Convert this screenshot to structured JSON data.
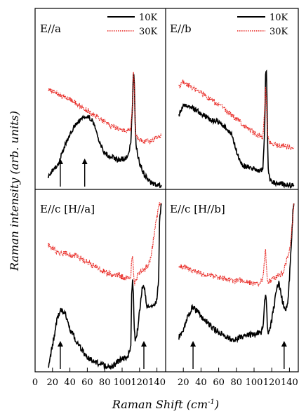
{
  "chart_data": {
    "type": "line",
    "xlabel": "Raman Shift (cm-1)",
    "xlabel_main": "Raman Shift (cm",
    "xlabel_exp": "-1",
    "xlabel_close": ")",
    "ylabel": "Raman intensity (arb. units)",
    "xlim": [
      0,
      150
    ],
    "x_ticks": [
      0,
      20,
      40,
      60,
      80,
      100,
      120,
      140
    ],
    "x_tick_labels": [
      "0",
      "20",
      "40",
      "60",
      "80",
      "100",
      "120",
      "140"
    ],
    "y_ticks_shown": false,
    "legend": [
      {
        "name": "10K",
        "color": "#000000",
        "style": "solid"
      },
      {
        "name": "30K",
        "color": "#e8231e",
        "style": "dotted"
      }
    ],
    "legend_position": "top-right",
    "panels": [
      {
        "label": "E//a",
        "position": "top-left",
        "arrows_at_x": [
          29,
          57
        ],
        "series": [
          {
            "name": "10K",
            "color": "#000000",
            "x": [
              15,
              20,
              25,
              30,
              35,
              40,
              45,
              50,
              55,
              60,
              65,
              70,
              75,
              80,
              85,
              90,
              95,
              100,
              103,
              105,
              108,
              110,
              112,
              113,
              114,
              115,
              116,
              118,
              120,
              125,
              130,
              135,
              140,
              145
            ],
            "y": [
              0.07,
              0.12,
              0.15,
              0.22,
              0.3,
              0.36,
              0.42,
              0.46,
              0.48,
              0.5,
              0.47,
              0.4,
              0.3,
              0.24,
              0.22,
              0.21,
              0.19,
              0.2,
              0.2,
              0.21,
              0.24,
              0.32,
              0.6,
              0.8,
              0.72,
              0.45,
              0.3,
              0.22,
              0.17,
              0.1,
              0.05,
              0.03,
              0.02,
              0.02
            ]
          },
          {
            "name": "30K",
            "color": "#e8231e",
            "x": [
              15,
              20,
              25,
              30,
              35,
              40,
              45,
              50,
              55,
              60,
              65,
              70,
              75,
              80,
              85,
              90,
              95,
              100,
              105,
              108,
              110,
              112,
              113,
              114,
              115,
              116,
              118,
              120,
              125,
              130,
              135,
              140,
              145
            ],
            "y": [
              0.67,
              0.66,
              0.65,
              0.63,
              0.62,
              0.61,
              0.59,
              0.57,
              0.55,
              0.53,
              0.51,
              0.49,
              0.47,
              0.45,
              0.43,
              0.42,
              0.41,
              0.4,
              0.39,
              0.39,
              0.4,
              0.58,
              0.8,
              0.7,
              0.42,
              0.36,
              0.34,
              0.33,
              0.32,
              0.32,
              0.33,
              0.35,
              0.36
            ]
          }
        ]
      },
      {
        "label": "E//b",
        "position": "top-right",
        "arrows_at_x": [],
        "series": [
          {
            "name": "10K",
            "color": "#000000",
            "x": [
              15,
              20,
              25,
              30,
              35,
              40,
              45,
              50,
              55,
              60,
              65,
              70,
              75,
              80,
              85,
              90,
              95,
              100,
              105,
              108,
              110,
              112,
              113,
              114,
              115,
              116,
              118,
              120,
              125,
              130,
              135,
              140,
              145
            ],
            "y": [
              0.5,
              0.56,
              0.57,
              0.55,
              0.53,
              0.51,
              0.49,
              0.47,
              0.46,
              0.45,
              0.43,
              0.4,
              0.37,
              0.25,
              0.17,
              0.15,
              0.14,
              0.13,
              0.12,
              0.12,
              0.13,
              0.4,
              0.78,
              0.8,
              0.45,
              0.12,
              0.05,
              0.04,
              0.03,
              0.03,
              0.02,
              0.02,
              0.02
            ]
          },
          {
            "name": "30K",
            "color": "#e8231e",
            "x": [
              15,
              20,
              25,
              30,
              35,
              40,
              45,
              50,
              55,
              60,
              65,
              70,
              75,
              80,
              85,
              90,
              95,
              100,
              105,
              108,
              110,
              112,
              113,
              114,
              115,
              116,
              118,
              120,
              125,
              130,
              135,
              140,
              145
            ],
            "y": [
              0.7,
              0.73,
              0.71,
              0.69,
              0.67,
              0.65,
              0.63,
              0.61,
              0.59,
              0.57,
              0.55,
              0.52,
              0.5,
              0.47,
              0.45,
              0.42,
              0.4,
              0.38,
              0.36,
              0.35,
              0.35,
              0.55,
              0.7,
              0.6,
              0.36,
              0.34,
              0.32,
              0.31,
              0.3,
              0.29,
              0.29,
              0.28,
              0.28
            ]
          }
        ]
      },
      {
        "label": "E//c [H//a]",
        "position": "bottom-left",
        "arrows_at_x": [
          29,
          125
        ],
        "series": [
          {
            "name": "10K",
            "color": "#000000",
            "x": [
              15,
              20,
              25,
              30,
              35,
              40,
              45,
              50,
              55,
              60,
              65,
              70,
              75,
              80,
              85,
              90,
              95,
              100,
              105,
              108,
              110,
              111,
              112,
              113,
              114,
              115,
              116,
              118,
              120,
              122,
              124,
              126,
              128,
              130,
              133,
              135,
              138,
              140,
              142,
              143,
              145
            ],
            "y": [
              0.02,
              0.15,
              0.3,
              0.37,
              0.33,
              0.25,
              0.2,
              0.15,
              0.11,
              0.08,
              0.06,
              0.05,
              0.04,
              0.03,
              0.02,
              0.03,
              0.05,
              0.07,
              0.08,
              0.1,
              0.15,
              0.45,
              0.53,
              0.45,
              0.25,
              0.18,
              0.2,
              0.25,
              0.35,
              0.45,
              0.52,
              0.48,
              0.4,
              0.38,
              0.37,
              0.38,
              0.4,
              0.43,
              0.55,
              0.9,
              1.0
            ]
          },
          {
            "name": "30K",
            "color": "#e8231e",
            "x": [
              15,
              20,
              25,
              30,
              35,
              40,
              45,
              50,
              55,
              60,
              65,
              70,
              75,
              80,
              85,
              90,
              95,
              100,
              105,
              108,
              110,
              111,
              112,
              113,
              114,
              116,
              118,
              120,
              125,
              130,
              133,
              135,
              138,
              140,
              142,
              143,
              145
            ],
            "y": [
              0.75,
              0.73,
              0.71,
              0.7,
              0.7,
              0.69,
              0.69,
              0.68,
              0.66,
              0.65,
              0.63,
              0.62,
              0.6,
              0.59,
              0.58,
              0.57,
              0.57,
              0.56,
              0.55,
              0.55,
              0.57,
              0.66,
              0.68,
              0.6,
              0.52,
              0.55,
              0.57,
              0.58,
              0.6,
              0.63,
              0.68,
              0.75,
              0.85,
              0.92,
              0.97,
              1.0,
              1.0
            ]
          }
        ]
      },
      {
        "label": "E//c [H//b]",
        "position": "bottom-right",
        "arrows_at_x": [
          31,
          134
        ],
        "series": [
          {
            "name": "10K",
            "color": "#000000",
            "x": [
              15,
              20,
              25,
              30,
              35,
              40,
              45,
              50,
              55,
              60,
              65,
              70,
              75,
              80,
              85,
              90,
              95,
              100,
              105,
              108,
              110,
              112,
              113,
              114,
              115,
              116,
              118,
              120,
              123,
              126,
              128,
              130,
              133,
              135,
              138,
              140,
              142,
              144,
              145
            ],
            "y": [
              0.2,
              0.24,
              0.32,
              0.38,
              0.36,
              0.33,
              0.3,
              0.27,
              0.25,
              0.23,
              0.21,
              0.2,
              0.18,
              0.19,
              0.2,
              0.21,
              0.21,
              0.22,
              0.22,
              0.23,
              0.25,
              0.43,
              0.45,
              0.4,
              0.27,
              0.22,
              0.25,
              0.3,
              0.4,
              0.5,
              0.52,
              0.47,
              0.4,
              0.36,
              0.4,
              0.55,
              0.75,
              0.95,
              1.0
            ]
          },
          {
            "name": "30K",
            "color": "#e8231e",
            "x": [
              15,
              20,
              25,
              30,
              35,
              40,
              45,
              50,
              55,
              60,
              65,
              70,
              75,
              80,
              85,
              90,
              95,
              100,
              105,
              108,
              110,
              112,
              113,
              114,
              115,
              116,
              118,
              120,
              125,
              130,
              133,
              135,
              138,
              140,
              142,
              144,
              145
            ],
            "y": [
              0.62,
              0.62,
              0.61,
              0.6,
              0.59,
              0.58,
              0.57,
              0.57,
              0.56,
              0.56,
              0.55,
              0.55,
              0.54,
              0.54,
              0.54,
              0.53,
              0.53,
              0.52,
              0.52,
              0.53,
              0.55,
              0.68,
              0.72,
              0.62,
              0.54,
              0.53,
              0.54,
              0.55,
              0.56,
              0.57,
              0.6,
              0.62,
              0.68,
              0.72,
              0.8,
              0.92,
              1.0
            ]
          }
        ]
      }
    ]
  }
}
